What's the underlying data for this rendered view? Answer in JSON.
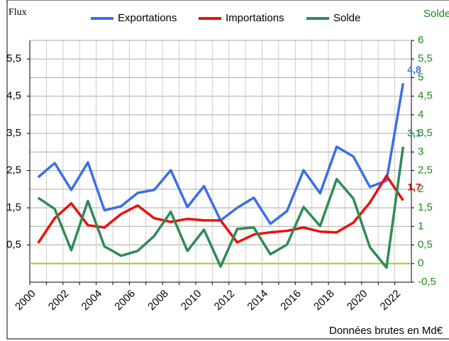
{
  "chart_data": {
    "type": "line",
    "y_label": "Flux",
    "y2_label": "Solde",
    "footnote": "Données brutes en Md€",
    "categories": [
      "2000",
      null,
      "2002",
      null,
      "2004",
      null,
      "2006",
      null,
      "2008",
      null,
      "2010",
      null,
      "2012",
      null,
      "2014",
      null,
      "2016",
      null,
      "2018",
      null,
      "2020",
      null,
      "2022"
    ],
    "series": [
      {
        "name": "Exportations",
        "color": "#3a6fe8",
        "values": [
          2.32,
          2.7,
          1.98,
          2.72,
          1.43,
          1.54,
          1.9,
          1.98,
          2.51,
          1.52,
          2.08,
          1.16,
          1.5,
          1.77,
          1.07,
          1.41,
          2.51,
          1.89,
          3.14,
          2.88,
          2.06,
          2.23,
          4.85
        ],
        "value_labels": [
          null,
          null,
          null,
          null,
          null,
          null,
          null,
          null,
          null,
          null,
          null,
          null,
          null,
          null,
          null,
          null,
          null,
          null,
          null,
          null,
          null,
          null,
          "4,8"
        ]
      },
      {
        "name": "Importations",
        "color": "#e8120c",
        "values": [
          0.55,
          1.22,
          1.62,
          1.03,
          0.97,
          1.33,
          1.56,
          1.22,
          1.12,
          1.2,
          1.16,
          1.16,
          0.57,
          0.78,
          0.84,
          0.88,
          0.97,
          0.86,
          0.84,
          1.1,
          1.64,
          2.36,
          1.7
        ],
        "value_labels": [
          null,
          null,
          null,
          null,
          null,
          null,
          null,
          null,
          null,
          null,
          null,
          null,
          null,
          null,
          null,
          null,
          null,
          null,
          null,
          null,
          null,
          null,
          "1,7"
        ]
      },
      {
        "name": "Solde",
        "color": "#2e8b57",
        "axis": "y2",
        "values": [
          1.77,
          1.47,
          0.36,
          1.68,
          0.46,
          0.21,
          0.34,
          0.74,
          1.39,
          0.34,
          0.91,
          -0.08,
          0.93,
          0.97,
          0.25,
          0.51,
          1.52,
          1.01,
          2.27,
          1.75,
          0.44,
          -0.11,
          3.14
        ],
        "value_labels": [
          null,
          null,
          null,
          null,
          null,
          null,
          null,
          null,
          null,
          null,
          null,
          null,
          null,
          null,
          null,
          null,
          null,
          null,
          null,
          null,
          null,
          null,
          "3,1"
        ]
      }
    ],
    "ylim": [
      -0.5,
      6
    ],
    "yticks": [
      {
        "value": 0.5,
        "label": "0,5"
      },
      {
        "value": 1.5,
        "label": "1,5"
      },
      {
        "value": 2.5,
        "label": "2,5"
      },
      {
        "value": 3.5,
        "label": "3,5"
      },
      {
        "value": 4.5,
        "label": "4,5"
      },
      {
        "value": 5.5,
        "label": "5,5"
      }
    ],
    "y2lim": [
      -0.5,
      6
    ],
    "y2ticks": [
      {
        "value": -0.5,
        "label": "-0,5"
      },
      0,
      {
        "value": 0.5,
        "label": "0,5"
      },
      1,
      {
        "value": 1.5,
        "label": "1,5"
      },
      2,
      {
        "value": 2.5,
        "label": "2,5"
      },
      3,
      {
        "value": 3.5,
        "label": "3,5"
      },
      4,
      {
        "value": 4.5,
        "label": "4,5"
      },
      5,
      {
        "value": 5.5,
        "label": "5,5"
      },
      6
    ],
    "hline": {
      "value": 0,
      "color": "#a8c820",
      "axis": "y2"
    },
    "grid": true,
    "legend": "top"
  }
}
